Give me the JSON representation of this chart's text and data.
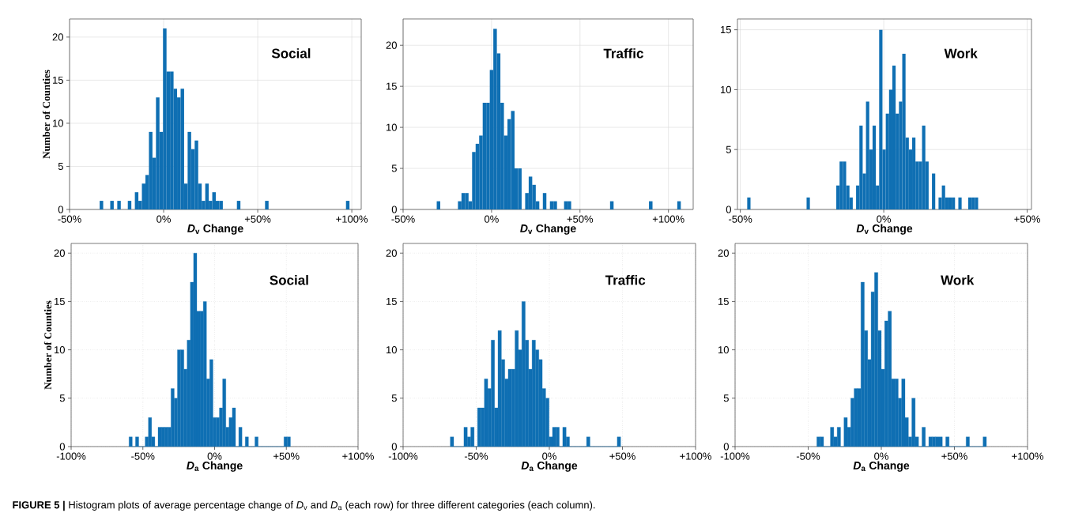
{
  "chart_data": [
    {
      "type": "histogram",
      "color": "#0f6fb3",
      "grid": true,
      "ylabel": "Number of Counties",
      "xlabel": "*D*$_{v}$ Change",
      "annotations": [
        "Social",
        "**FIGURE 5 |** Histogram plots of average percentage change of *D*$_{v}$ and *D*$_{a}$ (each row) for three different categories (each column)."
      ],
      "bins": [
        -34,
        -32.13,
        -28.39,
        -26.52,
        -24.65,
        -22.78,
        -19.04,
        -17.17,
        -15.3,
        -13.43,
        -11.56,
        -9.69,
        -7.82,
        -5.95,
        -4.08,
        -2.21,
        -0.34,
        1.53,
        3.4,
        5.27,
        7.14,
        9.01,
        10.88,
        12.75,
        14.62,
        16.49,
        18.36,
        20.23,
        22.1,
        23.97,
        25.84,
        27.71,
        29.58,
        31.45,
        38.93,
        40.8,
        53.89,
        55.76,
        96.9,
        98.77
      ],
      "values": [
        1,
        0,
        1,
        0,
        1,
        0,
        1,
        0,
        2,
        1,
        3,
        4,
        9,
        6,
        13,
        9,
        21,
        16,
        16,
        14,
        13,
        14,
        3,
        9,
        7,
        8,
        3,
        1,
        3,
        1,
        2,
        1,
        1,
        0,
        1,
        0,
        1,
        0,
        1
      ],
      "xlim": [
        -50,
        105
      ],
      "ylim": [
        0,
        22.1
      ],
      "xticks": [
        {
          "value": -50,
          "label": "-50%"
        },
        {
          "value": 0,
          "label": "0%"
        },
        {
          "value": 50,
          "label": "+50%"
        },
        {
          "value": 100,
          "label": "+100%"
        }
      ],
      "yticks": [
        0,
        5,
        10,
        15,
        20
      ]
    },
    {
      "type": "histogram",
      "color": "#0f6fb3",
      "grid": true,
      "xlabel": "*D*$_{v}$ Change",
      "annotations": [
        "Traffic"
      ],
      "bins": [
        -31,
        -29,
        -19,
        -17,
        -15,
        -13,
        -11,
        -9,
        -7,
        -5,
        -3,
        -1,
        1,
        3,
        5,
        7,
        9,
        11,
        13,
        15,
        17,
        19,
        21,
        23,
        25,
        27,
        29,
        31,
        33,
        35,
        37,
        41,
        43,
        45,
        67,
        69,
        89,
        91,
        105,
        107
      ],
      "values": [
        1,
        0,
        1,
        2,
        2,
        1,
        7,
        8,
        9,
        13,
        13,
        17,
        22,
        19,
        13,
        9,
        11,
        12,
        5,
        5,
        0,
        2,
        4,
        3,
        1,
        0,
        2,
        0,
        1,
        1,
        0,
        1,
        1,
        0,
        1,
        0,
        1,
        0,
        1
      ],
      "xlim": [
        -50,
        114
      ],
      "ylim": [
        0,
        23.2
      ],
      "xticks": [
        {
          "value": -50,
          "label": "-50%"
        },
        {
          "value": 0,
          "label": "0%"
        },
        {
          "value": 50,
          "label": "+50%"
        },
        {
          "value": 100,
          "label": "+100%"
        }
      ],
      "yticks": [
        0,
        5,
        10,
        15,
        20
      ]
    },
    {
      "type": "histogram",
      "color": "#0f6fb3",
      "grid": true,
      "xlabel": "*D*$_{v}$ Change",
      "annotations": [
        "Work"
      ],
      "bins": [
        -47.6,
        -46.45,
        -26.9,
        -25.75,
        -16.55,
        -15.4,
        -14.25,
        -13.1,
        -11.95,
        -10.8,
        -9.65,
        -8.5,
        -7.35,
        -6.2,
        -5.05,
        -3.9,
        -2.75,
        -1.6,
        -0.45,
        0.7,
        1.85,
        3.0,
        4.15,
        5.3,
        6.45,
        7.6,
        8.75,
        9.9,
        11.05,
        12.2,
        13.35,
        14.5,
        15.65,
        16.8,
        17.95,
        19.1,
        20.25,
        21.4,
        22.55,
        23.7,
        24.85,
        26.0,
        27.15,
        29.45,
        30.6,
        31.75,
        32.9
      ],
      "values": [
        1,
        0,
        1,
        0,
        2,
        4,
        4,
        2,
        1,
        0,
        2,
        7,
        3,
        9,
        5,
        7,
        2,
        15,
        5,
        8,
        10,
        12,
        8,
        9,
        13,
        6,
        5,
        6,
        4,
        4,
        7,
        4,
        0,
        3,
        0,
        1,
        2,
        1,
        1,
        1,
        0,
        1,
        0,
        1,
        1,
        1
      ],
      "xlim": [
        -51,
        51.5
      ],
      "ylim": [
        0,
        15.9
      ],
      "xticks": [
        {
          "value": -50,
          "label": "-50%"
        },
        {
          "value": 0,
          "label": "0%"
        },
        {
          "value": 50,
          "label": "+50%"
        }
      ],
      "yticks": [
        0,
        5,
        10,
        15
      ]
    },
    {
      "type": "histogram",
      "color": "#0f6fb3",
      "grid": true,
      "ylabel": "Number of Counties",
      "xlabel": "*D*$_{a}$ Change",
      "annotations": [
        "Social"
      ],
      "bins": [
        -59.65,
        -57.4,
        -55.15,
        -52.9,
        -48.4,
        -46.15,
        -43.9,
        -41.65,
        -39.4,
        -37.15,
        -34.9,
        -32.65,
        -30.4,
        -28.15,
        -25.9,
        -23.65,
        -21.4,
        -19.15,
        -16.9,
        -14.65,
        -12.4,
        -10.15,
        -7.9,
        -5.65,
        -3.4,
        -1.15,
        1.1,
        3.35,
        5.6,
        7.85,
        10.1,
        12.35,
        14.6,
        16.85,
        19.1,
        21.35,
        23.6,
        28.1,
        30.35,
        48.35,
        50.6,
        52.85
      ],
      "values": [
        1,
        0,
        1,
        0,
        1,
        3,
        1,
        0,
        2,
        2,
        2,
        2,
        6,
        5,
        10,
        10,
        8,
        11,
        17,
        20,
        14,
        14,
        15,
        7,
        9,
        3,
        3,
        4,
        7,
        2,
        3,
        4,
        0,
        2,
        0,
        1,
        0,
        1,
        0,
        1,
        1
      ],
      "xlim": [
        -100,
        100
      ],
      "ylim": [
        0,
        21
      ],
      "xticks": [
        {
          "value": -100,
          "label": "-100%"
        },
        {
          "value": -50,
          "label": "-50%"
        },
        {
          "value": 0,
          "label": "0%"
        },
        {
          "value": 50,
          "label": "+50%"
        },
        {
          "value": 100,
          "label": "+100%"
        }
      ],
      "yticks": [
        0,
        5,
        10,
        15,
        20
      ]
    },
    {
      "type": "histogram",
      "color": "#0f6fb3",
      "grid": true,
      "xlabel": "*D*$_{a}$ Change",
      "annotations": [
        "Traffic"
      ],
      "bins": [
        -67.74,
        -65.41,
        -58.42,
        -56.09,
        -53.76,
        -51.43,
        -49.1,
        -46.77,
        -44.44,
        -42.11,
        -39.78,
        -37.45,
        -35.12,
        -32.79,
        -30.46,
        -28.13,
        -25.8,
        -23.47,
        -21.14,
        -18.81,
        -16.48,
        -14.15,
        -11.82,
        -9.49,
        -7.16,
        -4.83,
        -2.5,
        -0.17,
        2.16,
        4.49,
        6.82,
        9.15,
        11.48,
        13.81,
        25.46,
        27.79,
        46.43,
        48.76
      ],
      "values": [
        1,
        0,
        2,
        1,
        2,
        0,
        4,
        4,
        7,
        6,
        11,
        4,
        12,
        9,
        7,
        8,
        8,
        12,
        10,
        15,
        11,
        8,
        11,
        10,
        9,
        6,
        5,
        1,
        2,
        2,
        0,
        2,
        1,
        0,
        1,
        0,
        1
      ],
      "xlim": [
        -100,
        100
      ],
      "ylim": [
        0,
        21
      ],
      "xticks": [
        {
          "value": -100,
          "label": "-100%"
        },
        {
          "value": -50,
          "label": "-50%"
        },
        {
          "value": 0,
          "label": "0%"
        },
        {
          "value": 50,
          "label": "+50%"
        },
        {
          "value": 100,
          "label": "+100%"
        }
      ],
      "yticks": [
        0,
        5,
        10,
        15,
        20
      ]
    },
    {
      "type": "histogram",
      "color": "#0f6fb3",
      "grid": true,
      "xlabel": "*D*$_{a}$ Change",
      "annotations": [
        "Work"
      ],
      "bins": [
        -44.1,
        -41.78,
        -39.46,
        -34.82,
        -32.5,
        -30.18,
        -27.86,
        -25.54,
        -23.22,
        -20.9,
        -18.58,
        -16.26,
        -13.94,
        -11.62,
        -9.3,
        -6.98,
        -4.66,
        -2.34,
        -0.02,
        2.3,
        4.62,
        6.94,
        9.26,
        11.58,
        13.9,
        16.22,
        18.54,
        20.86,
        23.18,
        25.5,
        27.82,
        30.14,
        32.46,
        34.78,
        37.1,
        41.74,
        44.06,
        46.38,
        57.98,
        60.3,
        69.58,
        71.9
      ],
      "values": [
        1,
        1,
        0,
        2,
        1,
        2,
        0,
        3,
        2,
        5,
        6,
        6,
        17,
        12,
        9,
        16,
        18,
        12,
        8,
        13,
        14,
        7,
        7,
        5,
        7,
        3,
        1,
        5,
        1,
        0,
        2,
        0,
        1,
        1,
        1,
        0,
        1,
        0,
        1,
        0,
        1
      ],
      "xlim": [
        -100,
        100
      ],
      "ylim": [
        0,
        21
      ],
      "xticks": [
        {
          "value": -100,
          "label": "-100%"
        },
        {
          "value": -50,
          "label": "-50%"
        },
        {
          "value": 0,
          "label": "0%"
        },
        {
          "value": 50,
          "label": "+50%"
        },
        {
          "value": 100,
          "label": "+100%"
        }
      ],
      "yticks": [
        0,
        5,
        10,
        15,
        20
      ]
    }
  ]
}
